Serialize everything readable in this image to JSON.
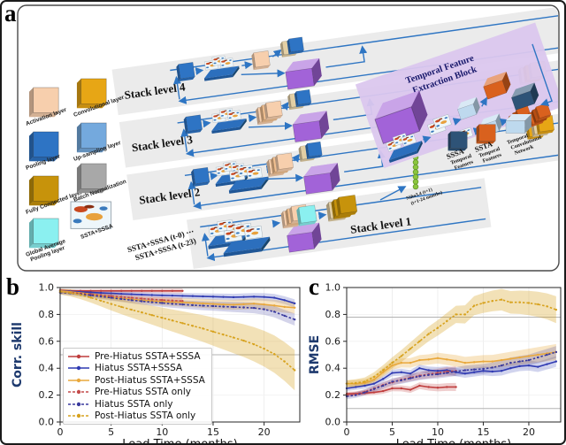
{
  "figure": {
    "panel_a_label": "a",
    "panel_b_label": "b",
    "panel_c_label": "c"
  },
  "diagram": {
    "arrow_color": "#2e75c3",
    "band_color": "#ebebeb",
    "purple_color": "#a263d8",
    "tan_color": "#e3cfa4",
    "temporal_bg": "#dbc7ee",
    "legend_layers": [
      {
        "line1": "Activation layer",
        "line2": "",
        "color": "#f7cfad"
      },
      {
        "line1": "Convolutional layer",
        "line2": "",
        "color": "#e7a615"
      },
      {
        "line1": "Pooling layer",
        "line2": "",
        "color": "#2e74c4"
      },
      {
        "line1": "Up-sampling layer",
        "line2": "",
        "color": "#74a9dd"
      },
      {
        "line1": "Fully Connected layer",
        "line2": "",
        "color": "#c7930b"
      },
      {
        "line1": "Batch Normalization",
        "line2": "",
        "color": "#a8a8a8"
      },
      {
        "line1": "Global Average",
        "line2": "Pooling layer",
        "color": "#8bf0f0"
      },
      {
        "line1": "SSTA+SSSA",
        "line2": "",
        "color": "map"
      }
    ],
    "stack_labels": [
      "Stack level 4",
      "Stack level 3",
      "Stack level 2",
      "Stack level 1"
    ],
    "temporal_block_title_line1": "Temporal Feature",
    "temporal_block_title_line2": "Extraction Block",
    "feature_legend": [
      {
        "line1": "SSSA",
        "line2": "Temporal",
        "line3": "Features",
        "color": "#2e5377"
      },
      {
        "line1": "SSTA",
        "line2": "Temporal",
        "line3": "Features",
        "color": "#d9611e"
      },
      {
        "line1": "Temporal",
        "line2": "Convolutional",
        "line3": "Network",
        "color": "#bed9ee"
      }
    ],
    "input_text_line1": "SSTA+SSSA (t-0) ⋯",
    "input_text_line2": "SSTA+SSSA (t-23)",
    "output_text_line1": "Niño3.4 (t+1)",
    "output_text_line2": "(t+1-24 months)"
  },
  "chart_data": [
    {
      "type": "line",
      "panel": "b",
      "xlabel": "Lead Time (months)",
      "ylabel": "Corr. skill",
      "ylabel_color": "#1e3a6e",
      "xlim": [
        0,
        23.5
      ],
      "ylim": [
        0.0,
        1.0
      ],
      "xticks": [
        0,
        5,
        10,
        15,
        20
      ],
      "yticks": [
        0.0,
        0.2,
        0.4,
        0.6,
        0.8,
        1.0
      ],
      "reference_lines_y": [
        0.5
      ],
      "grid": "faint",
      "legend_position": "lower left",
      "x": [
        0,
        1,
        2,
        3,
        4,
        5,
        6,
        7,
        8,
        9,
        10,
        11,
        12,
        13,
        14,
        15,
        16,
        17,
        18,
        19,
        20,
        21,
        22,
        23
      ],
      "series": [
        {
          "name": "Pre-Hiatus SSTA+SSSA",
          "color": "#bf3d3d",
          "style": "solid",
          "band": [
            0.012,
            0.018
          ],
          "band_opacity": 0.22,
          "values": [
            0.98,
            0.975,
            0.975,
            0.975,
            0.975,
            0.975,
            0.975,
            0.975,
            0.975,
            0.975,
            0.975,
            0.975,
            0.975
          ]
        },
        {
          "name": "Hiatus SSTA+SSSA",
          "color": "#2f3ab2",
          "style": "solid",
          "band": [
            0.012,
            0.03
          ],
          "band_opacity": 0.22,
          "values": [
            0.975,
            0.972,
            0.968,
            0.964,
            0.96,
            0.957,
            0.953,
            0.95,
            0.947,
            0.944,
            0.942,
            0.94,
            0.938,
            0.936,
            0.934,
            0.932,
            0.93,
            0.928,
            0.93,
            0.932,
            0.93,
            0.924,
            0.906,
            0.882
          ]
        },
        {
          "name": "Post-Hiatus SSTA+SSSA",
          "color": "#e9a83c",
          "style": "solid",
          "band": [
            0.015,
            0.045
          ],
          "band_opacity": 0.3,
          "values": [
            0.975,
            0.968,
            0.96,
            0.95,
            0.94,
            0.93,
            0.92,
            0.912,
            0.905,
            0.9,
            0.896,
            0.893,
            0.89,
            0.886,
            0.882,
            0.878,
            0.874,
            0.872,
            0.876,
            0.88,
            0.874,
            0.866,
            0.856,
            0.85
          ]
        },
        {
          "name": "Pre-Hiatus SSTA only",
          "color": "#c44b4b",
          "style": "dashed",
          "band": [
            0.012,
            0.025
          ],
          "band_opacity": 0.22,
          "values": [
            0.965,
            0.962,
            0.957,
            0.95,
            0.943,
            0.936,
            0.93,
            0.924,
            0.918,
            0.912,
            0.907,
            0.903,
            0.9
          ]
        },
        {
          "name": "Hiatus SSTA only",
          "color": "#3a3a9e",
          "style": "dashed",
          "band": [
            0.015,
            0.045
          ],
          "band_opacity": 0.22,
          "values": [
            0.962,
            0.957,
            0.95,
            0.942,
            0.933,
            0.924,
            0.915,
            0.906,
            0.898,
            0.891,
            0.885,
            0.879,
            0.874,
            0.869,
            0.865,
            0.862,
            0.858,
            0.855,
            0.852,
            0.848,
            0.838,
            0.82,
            0.79,
            0.762
          ]
        },
        {
          "name": "Post-Hiatus SSTA only",
          "color": "#d7a21e",
          "style": "dashed",
          "band": [
            0.02,
            0.15
          ],
          "band_opacity": 0.32,
          "values": [
            0.968,
            0.96,
            0.945,
            0.925,
            0.902,
            0.878,
            0.856,
            0.835,
            0.815,
            0.795,
            0.775,
            0.755,
            0.735,
            0.715,
            0.695,
            0.672,
            0.65,
            0.628,
            0.605,
            0.578,
            0.545,
            0.505,
            0.45,
            0.385
          ]
        }
      ]
    },
    {
      "type": "line",
      "panel": "c",
      "xlabel": "Lead Time (months)",
      "ylabel": "RMSE",
      "ylabel_color": "#1e3a6e",
      "xlim": [
        0,
        23.5
      ],
      "ylim": [
        0.0,
        1.0
      ],
      "xticks": [
        0,
        5,
        10,
        15,
        20
      ],
      "yticks": [
        0.0,
        0.2,
        0.4,
        0.6,
        0.8,
        1.0
      ],
      "reference_lines_y": [
        0.78,
        0.1
      ],
      "grid": "faint",
      "legend_position": "none",
      "x": [
        0,
        1,
        2,
        3,
        4,
        5,
        6,
        7,
        8,
        9,
        10,
        11,
        12,
        13,
        14,
        15,
        16,
        17,
        18,
        19,
        20,
        21,
        22,
        23
      ],
      "series": [
        {
          "name": "Pre-Hiatus SSTA+SSSA",
          "color": "#bf3d3d",
          "style": "solid",
          "band": [
            0.015,
            0.03
          ],
          "band_opacity": 0.25,
          "values": [
            0.21,
            0.21,
            0.215,
            0.22,
            0.23,
            0.25,
            0.25,
            0.24,
            0.27,
            0.26,
            0.255,
            0.26,
            0.26
          ]
        },
        {
          "name": "Hiatus SSTA+SSSA",
          "color": "#2f3ab2",
          "style": "solid",
          "band": [
            0.02,
            0.04
          ],
          "band_opacity": 0.22,
          "values": [
            0.25,
            0.26,
            0.27,
            0.285,
            0.32,
            0.365,
            0.37,
            0.36,
            0.4,
            0.385,
            0.38,
            0.385,
            0.37,
            0.36,
            0.37,
            0.38,
            0.375,
            0.38,
            0.4,
            0.415,
            0.42,
            0.41,
            0.43,
            0.45
          ]
        },
        {
          "name": "Post-Hiatus SSTA+SSSA",
          "color": "#e9a83c",
          "style": "solid",
          "band": [
            0.025,
            0.06
          ],
          "band_opacity": 0.3,
          "values": [
            0.285,
            0.285,
            0.29,
            0.315,
            0.37,
            0.42,
            0.44,
            0.44,
            0.46,
            0.465,
            0.475,
            0.465,
            0.455,
            0.44,
            0.445,
            0.45,
            0.45,
            0.46,
            0.47,
            0.48,
            0.49,
            0.5,
            0.51,
            0.52
          ]
        },
        {
          "name": "Pre-Hiatus SSTA only",
          "color": "#c44b4b",
          "style": "dashed",
          "band": [
            0.015,
            0.035
          ],
          "band_opacity": 0.25,
          "values": [
            0.2,
            0.21,
            0.225,
            0.25,
            0.275,
            0.295,
            0.315,
            0.33,
            0.345,
            0.355,
            0.365,
            0.375,
            0.38
          ]
        },
        {
          "name": "Hiatus SSTA only",
          "color": "#3a3a9e",
          "style": "dashed",
          "band": [
            0.02,
            0.045
          ],
          "band_opacity": 0.22,
          "values": [
            0.19,
            0.2,
            0.22,
            0.245,
            0.27,
            0.3,
            0.31,
            0.325,
            0.34,
            0.35,
            0.355,
            0.365,
            0.375,
            0.385,
            0.39,
            0.395,
            0.405,
            0.42,
            0.44,
            0.45,
            0.46,
            0.48,
            0.5,
            0.52
          ]
        },
        {
          "name": "Post-Hiatus SSTA only",
          "color": "#d7a21e",
          "style": "dashed",
          "band": [
            0.025,
            0.1
          ],
          "band_opacity": 0.32,
          "values": [
            0.285,
            0.29,
            0.3,
            0.335,
            0.385,
            0.44,
            0.49,
            0.545,
            0.6,
            0.655,
            0.7,
            0.75,
            0.8,
            0.8,
            0.865,
            0.885,
            0.9,
            0.91,
            0.89,
            0.89,
            0.885,
            0.875,
            0.86,
            0.835
          ]
        }
      ]
    }
  ]
}
